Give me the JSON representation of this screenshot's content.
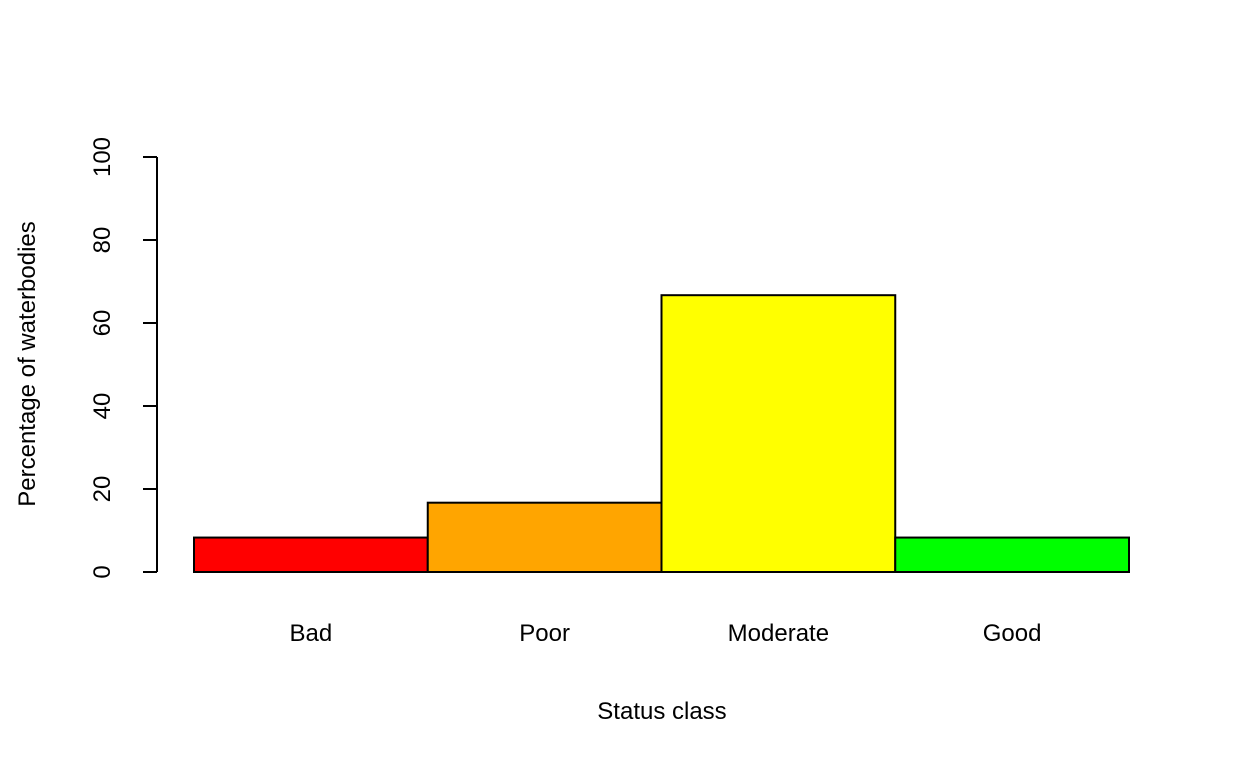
{
  "chart_data": {
    "type": "bar",
    "title": "",
    "xlabel": "Status class",
    "ylabel": "Percentage of waterbodies",
    "categories": [
      "Bad",
      "Poor",
      "Moderate",
      "Good"
    ],
    "values": [
      8.3,
      16.7,
      66.7,
      8.3
    ],
    "colors": [
      "#ff0000",
      "#ffa500",
      "#ffff00",
      "#00ff00"
    ],
    "ylim": [
      0,
      100
    ],
    "yticks": [
      0,
      20,
      40,
      60,
      80,
      100
    ],
    "grid": false,
    "legend": "none"
  }
}
